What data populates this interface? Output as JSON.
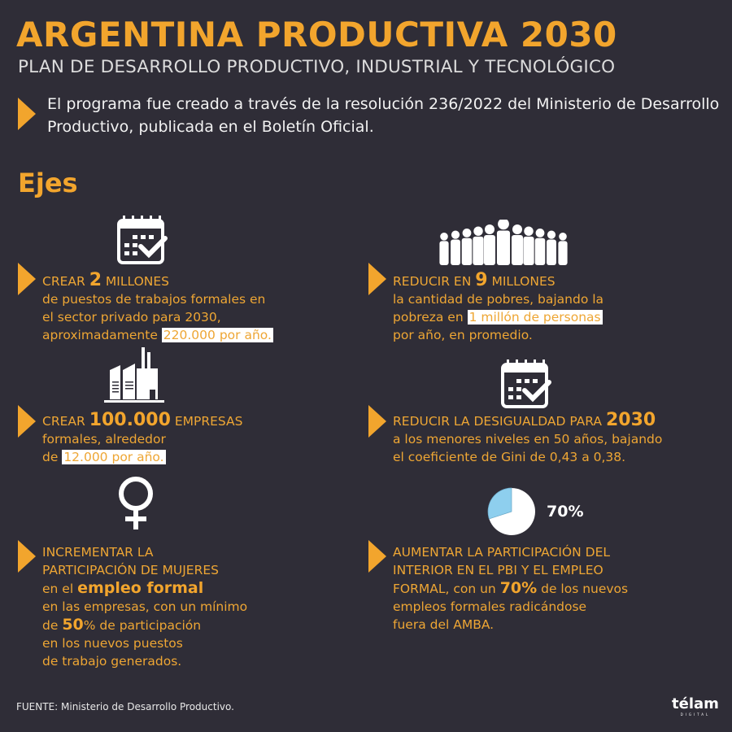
{
  "title": "ARGENTINA PRODUCTIVA 2030",
  "subtitle": "PLAN DE DESARROLLO PRODUCTIVO, INDUSTRIAL Y TECNOLÓGICO",
  "intro": "El programa fue creado a través de la resolución 236/2022 del Ministerio de Desarrollo Productivo, publicada en el Boletín Oficial.",
  "section_title": "Ejes",
  "colors": {
    "background": "#2f2d37",
    "accent": "#f2a52d",
    "pie_slice": "#8ecfee"
  },
  "items": [
    {
      "icon": "calendar-check-icon",
      "pre": "CREAR ",
      "big": "2",
      "post": " MILLONES",
      "l2": "de puestos de trabajos formales en",
      "l3": "el sector privado para 2030,",
      "l4a": "aproximadamente ",
      "l4hl": "220.000 por año."
    },
    {
      "icon": "people-crowd-icon",
      "pre": "REDUCIR EN ",
      "big": "9",
      "post": " MILLONES",
      "l2": "la cantidad de pobres, bajando la",
      "l3a": "pobreza en ",
      "l3hl": "1 millón de personas",
      "l4": "por año, en promedio."
    },
    {
      "icon": "factory-icon",
      "pre": "CREAR ",
      "big": "100.000",
      "post": " EMPRESAS",
      "l2": "formales, alrededor",
      "l3a": "de ",
      "l3hl": "12.000 por año."
    },
    {
      "icon": "calendar-check-icon",
      "pre": "REDUCIR LA DESIGUALDAD PARA ",
      "big": "2030",
      "l2": "a los menores niveles en 50 años, bajando",
      "l3": "el coeficiente de Gini de 0,43 a 0,38."
    },
    {
      "icon": "female-symbol-icon",
      "l1": "INCREMENTAR LA",
      "l2": "PARTICIPACIÓN DE MUJERES",
      "l3a": "en el ",
      "l3b": "empleo formal",
      "l4": "en las empresas, con un mínimo",
      "l5a": "de ",
      "l5b": "50",
      "l5c": "% de participación",
      "l6": "en los nuevos puestos",
      "l7": "de trabajo generados."
    },
    {
      "icon": "pie-chart-icon",
      "pie_label": "70%",
      "pie_value_percent": 70,
      "l1": "AUMENTAR LA PARTICIPACIÓN DEL",
      "l2": "INTERIOR EN EL PBI Y EL EMPLEO",
      "l3a": "FORMAL, con un ",
      "l3b": "70%",
      "l3c": " de los nuevos",
      "l4": "empleos formales radicándose",
      "l5": "fuera del AMBA."
    }
  ],
  "source": "FUENTE: Ministerio de Desarrollo Productivo.",
  "logo": {
    "name": "télam",
    "sub": "DIGITAL"
  }
}
